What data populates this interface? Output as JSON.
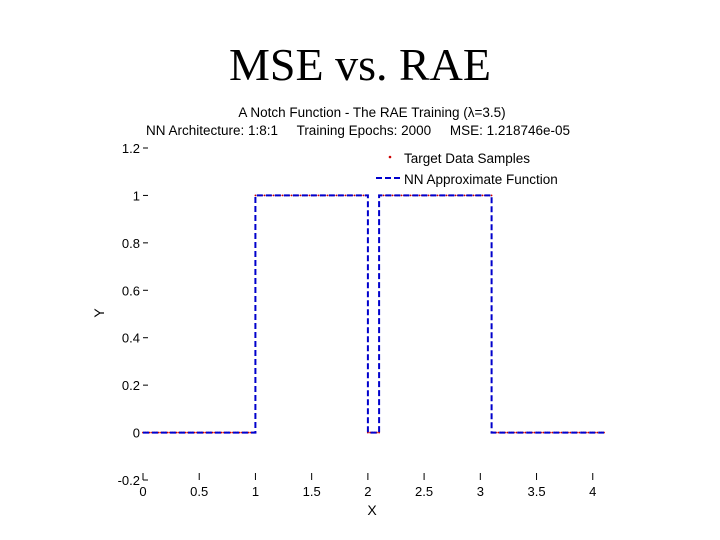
{
  "slide": {
    "title": "MSE vs. RAE"
  },
  "chart_data": {
    "type": "line",
    "title": "A Notch Function - The RAE Training (λ=3.5)",
    "subtitle": "NN Architecture: 1:8:1     Training Epochs: 2000     MSE: 1.218746e-05",
    "xlabel": "X",
    "ylabel": "Y",
    "xlim": [
      0,
      4.1
    ],
    "ylim": [
      -0.2,
      1.2
    ],
    "x_ticks": [
      0,
      0.5,
      1,
      1.5,
      2,
      2.5,
      3,
      3.5,
      4
    ],
    "x_tick_labels": [
      "0",
      "0.5",
      "1",
      "1.5",
      "2",
      "2.5",
      "3",
      "3.5",
      "4"
    ],
    "y_ticks": [
      -0.2,
      0,
      0.2,
      0.4,
      0.6,
      0.8,
      1,
      1.2
    ],
    "y_tick_labels": [
      "-0.2",
      "0",
      "0.2",
      "0.4",
      "0.6",
      "0.8",
      "1",
      "1.2"
    ],
    "legend_position": "top-right",
    "series": [
      {
        "name": "Target Data Samples",
        "style": "points",
        "color": "#cc0000",
        "x": [
          0,
          1,
          1,
          2,
          2,
          2.1,
          2.1,
          3.1,
          3.1,
          4.1
        ],
        "y": [
          0,
          0,
          1,
          1,
          0,
          0,
          1,
          1,
          0,
          0
        ]
      },
      {
        "name": "NN Approximate Function",
        "style": "dashed",
        "color": "#0000cc",
        "x": [
          0,
          1,
          1,
          2,
          2,
          2.1,
          2.1,
          3.1,
          3.1,
          4.1
        ],
        "y": [
          0,
          0,
          1,
          1,
          0,
          0,
          1,
          1,
          0,
          0
        ]
      }
    ]
  }
}
